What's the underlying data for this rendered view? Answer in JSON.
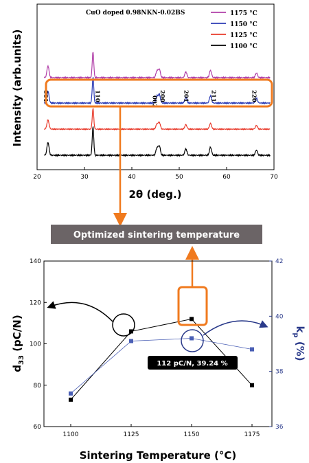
{
  "chart_data": [
    {
      "type": "line",
      "title": "CuO doped 0.98NKN-0.02BS",
      "xlabel": "2θ (deg.)",
      "ylabel": "Intensity (arb.units)",
      "xlim": [
        20,
        70
      ],
      "xticks": [
        "20",
        "30",
        "40",
        "50",
        "60",
        "70"
      ],
      "series": [
        {
          "name": "1175 °C",
          "color": "#b13fa8"
        },
        {
          "name": "1150 °C",
          "color": "#2b3bb5"
        },
        {
          "name": "1125 °C",
          "color": "#e8392a"
        },
        {
          "name": "1100 °C",
          "color": "#000000"
        }
      ],
      "peaks": [
        {
          "label": "001",
          "x": 22.3,
          "h": 0.45
        },
        {
          "label": "110",
          "x": 31.8,
          "h": 1.0
        },
        {
          "label": "002",
          "x": 45.3,
          "h": 0.25
        },
        {
          "label": "200",
          "x": 45.8,
          "h": 0.32
        },
        {
          "label": "201",
          "x": 51.4,
          "h": 0.22
        },
        {
          "label": "211",
          "x": 56.6,
          "h": 0.28
        },
        {
          "label": "220",
          "x": 66.3,
          "h": 0.18
        }
      ]
    },
    {
      "type": "line",
      "xlabel": "Sintering Temperature (°C)",
      "ylabel_left": "d33 (pC/N)",
      "ylabel_right": "kp (%)",
      "categories": [
        "1100",
        "1125",
        "1150",
        "1175"
      ],
      "x": [
        1100,
        1125,
        1150,
        1175
      ],
      "ylim_left": [
        60,
        140
      ],
      "yticks_left": [
        "60",
        "80",
        "100",
        "120",
        "140"
      ],
      "ylim_right": [
        36,
        42
      ],
      "yticks_right": [
        "36",
        "38",
        "40",
        "42"
      ],
      "series": [
        {
          "axis": "left",
          "color": "#000000",
          "values": [
            73,
            106,
            112,
            80
          ]
        },
        {
          "axis": "right",
          "color": "#4a5fb5",
          "values": [
            37.2,
            39.1,
            39.2,
            38.8
          ]
        }
      ]
    }
  ],
  "banner": "Optimized sintering temperature",
  "callout": "112 pC/N, 39.24 %",
  "colors": {
    "accent": "#f07a1e",
    "banner_bg": "#6b6466"
  }
}
